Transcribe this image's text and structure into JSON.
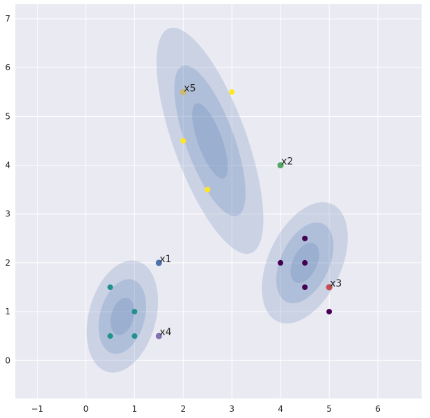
{
  "chart_data": {
    "type": "scatter",
    "title": "",
    "xlabel": "",
    "ylabel": "",
    "xlim": [
      -1.45,
      6.9
    ],
    "ylim": [
      -0.78,
      7.3
    ],
    "grid": true,
    "xticks": [
      -1,
      0,
      1,
      2,
      3,
      4,
      5,
      6
    ],
    "yticks": [
      0,
      1,
      2,
      3,
      4,
      5,
      6,
      7
    ],
    "colors": {
      "background": "#eaeaf2",
      "grid": "#ffffff",
      "ellipse": "#4c72b0",
      "cluster_purple": "#440154",
      "cluster_teal": "#21918c",
      "cluster_yellow": "#fde725"
    },
    "clusters": [
      {
        "color": "#440154",
        "points": [
          [
            4.5,
            2.5
          ],
          [
            4,
            2
          ],
          [
            4.5,
            2
          ],
          [
            4.5,
            1.5
          ],
          [
            5,
            1
          ]
        ],
        "ellipse": {
          "center": [
            4.5,
            2.0
          ],
          "width": 1.5,
          "height": 2.65,
          "angle": 25
        }
      },
      {
        "color": "#21918c",
        "points": [
          [
            0.5,
            1.5
          ],
          [
            1,
            1
          ],
          [
            0.5,
            0.5
          ],
          [
            1,
            0.5
          ]
        ],
        "ellipse": {
          "center": [
            0.75,
            0.9
          ],
          "width": 1.38,
          "height": 2.35,
          "angle": 15
        }
      },
      {
        "color": "#fde725",
        "points": [
          [
            3,
            5.5
          ],
          [
            2,
            4.5
          ],
          [
            2.5,
            3.5
          ]
        ],
        "ellipse": {
          "center": [
            2.55,
            4.5
          ],
          "width": 1.5,
          "height": 4.9,
          "angle": -20
        }
      }
    ],
    "labeled_points": [
      {
        "label": "x1",
        "x": 1.5,
        "y": 2.0,
        "color": "#4c72b0"
      },
      {
        "label": "x2",
        "x": 4.0,
        "y": 4.0,
        "color": "#55a868"
      },
      {
        "label": "x3",
        "x": 5.0,
        "y": 1.5,
        "color": "#c44e52"
      },
      {
        "label": "x4",
        "x": 1.5,
        "y": 0.5,
        "color": "#8172b2"
      },
      {
        "label": "x5",
        "x": 2.0,
        "y": 5.5,
        "color": "#ccb974"
      }
    ]
  }
}
